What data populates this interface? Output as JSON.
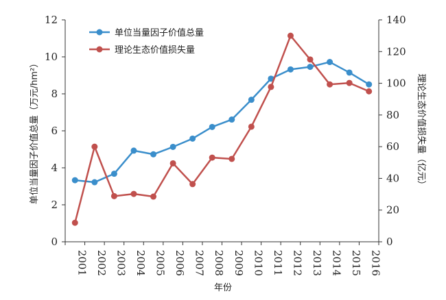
{
  "chart_data": {
    "type": "line",
    "x": [
      "2001",
      "2002",
      "2003",
      "2004",
      "2005",
      "2006",
      "2007",
      "2008",
      "2009",
      "2010",
      "2011",
      "2012",
      "2013",
      "2014",
      "2015",
      "2016"
    ],
    "xlabel": "年份",
    "ylabel_left": "单位当量因子价值总量（万元/hm²）",
    "ylabel_right": "理论生态价值损失量（亿元）",
    "ylim_left": [
      0,
      12
    ],
    "ylim_right": [
      0,
      140
    ],
    "yticks_left": [
      "0",
      "2",
      "4",
      "6",
      "8",
      "10",
      "12"
    ],
    "yticks_right": [
      "0",
      "20",
      "40",
      "60",
      "80",
      "100",
      "120",
      "140"
    ],
    "grid": false,
    "legend_position": "top-left",
    "series": [
      {
        "name": "单位当量因子价值总量",
        "axis": "left",
        "color": "#3a8ecb",
        "values": [
          3.33,
          3.22,
          3.68,
          4.93,
          4.73,
          5.13,
          5.58,
          6.21,
          6.61,
          7.68,
          8.82,
          9.32,
          9.46,
          9.72,
          9.15,
          8.51
        ]
      },
      {
        "name": "理论生态价值损失量",
        "axis": "right",
        "color": "#c0504d",
        "values": [
          12,
          60,
          28.8,
          30.2,
          28.5,
          49.5,
          36.4,
          53.1,
          52.3,
          72.6,
          97.7,
          130,
          115,
          99.3,
          100.2,
          94.9
        ]
      }
    ]
  }
}
